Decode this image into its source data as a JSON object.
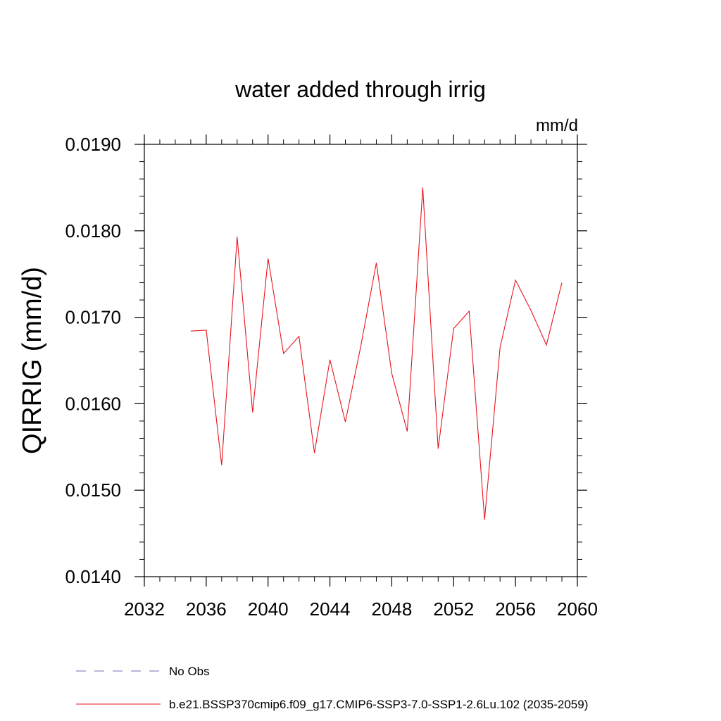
{
  "chart_data": {
    "type": "line",
    "title": "water added through irrig",
    "units_label": "mm/d",
    "xlabel": "",
    "ylabel": "QIRRIG  (mm/d)",
    "xlim": [
      2032,
      2060
    ],
    "ylim": [
      0.014,
      0.019
    ],
    "x_ticks": [
      2032,
      2036,
      2040,
      2044,
      2048,
      2052,
      2056,
      2060
    ],
    "x_tick_labels": [
      "2032",
      "2036",
      "2040",
      "2044",
      "2048",
      "2052",
      "2056",
      "2060"
    ],
    "y_ticks": [
      0.014,
      0.015,
      0.016,
      0.017,
      0.018,
      0.019
    ],
    "y_tick_labels": [
      "0.0140",
      "0.0150",
      "0.0160",
      "0.0170",
      "0.0180",
      "0.0190"
    ],
    "grid": false,
    "legend_position": "bottom",
    "series": [
      {
        "name": "b.e21.BSSP370cmip6.f09_g17.CMIP6-SSP3-7.0-SSP1-2.6Lu.102 (2035-2059)",
        "color": "#e8141c",
        "style": "solid",
        "x": [
          2035,
          2036,
          2037,
          2038,
          2039,
          2040,
          2041,
          2042,
          2043,
          2044,
          2045,
          2046,
          2047,
          2048,
          2049,
          2050,
          2051,
          2052,
          2053,
          2054,
          2055,
          2056,
          2057,
          2058,
          2059
        ],
        "y": [
          0.01684,
          0.01685,
          0.01529,
          0.01793,
          0.0159,
          0.01768,
          0.01658,
          0.01678,
          0.01543,
          0.01651,
          0.01579,
          0.01667,
          0.01763,
          0.01635,
          0.01568,
          0.0185,
          0.01548,
          0.01687,
          0.01707,
          0.01466,
          0.01665,
          0.01743,
          0.01708,
          0.01668,
          0.0174
        ]
      }
    ],
    "legend": [
      {
        "label": "No Obs",
        "color": "#7a6cb0",
        "style": "dashed"
      },
      {
        "label": "b.e21.BSSP370cmip6.f09_g17.CMIP6-SSP3-7.0-SSP1-2.6Lu.102 (2035-2059)",
        "color": "#e8141c",
        "style": "solid"
      }
    ]
  }
}
